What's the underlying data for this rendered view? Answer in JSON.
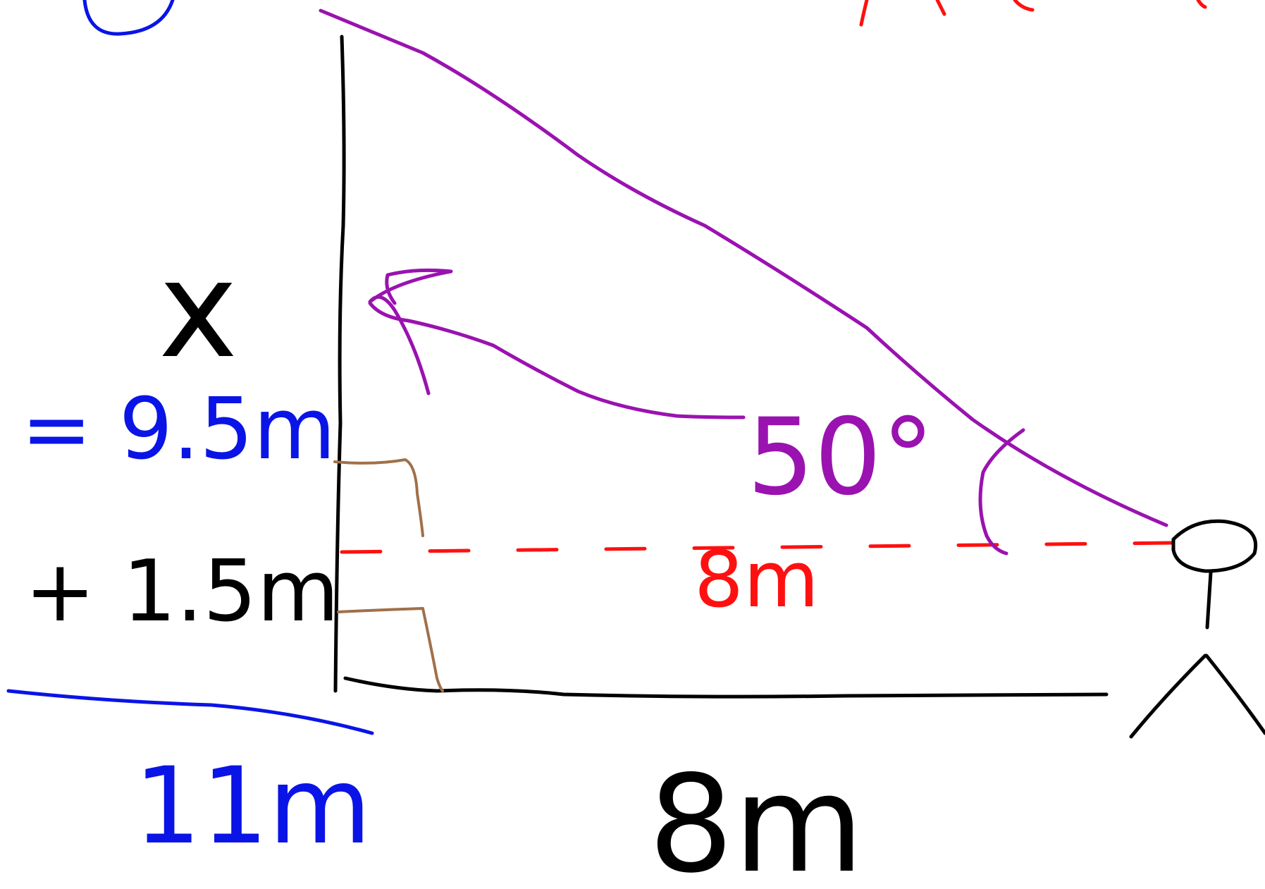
{
  "labels": {
    "unknown_height": "x",
    "equals_value": "= 9.5m",
    "plus_value": "+ 1.5m",
    "total": "11m",
    "base_length": "8m",
    "eye_level_length": "8m",
    "angle": "50°"
  },
  "colors": {
    "ink": "#000000",
    "blue": "#0a14e6",
    "purple": "#9a12b0",
    "red": "#ff1010",
    "brown": "#a0704a"
  },
  "icons": {
    "person": "stick-figure-icon"
  }
}
